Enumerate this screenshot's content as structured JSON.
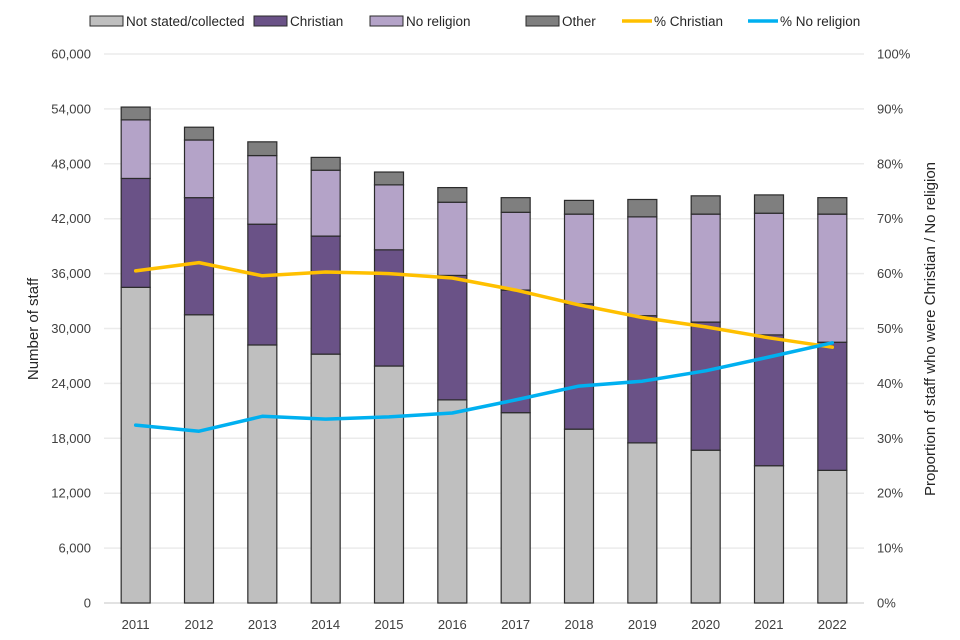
{
  "chart_data": {
    "type": "bar",
    "subtype": "stacked-bar-with-lines-dual-axis",
    "title": "",
    "categories": [
      "2011",
      "2012",
      "2013",
      "2014",
      "2015",
      "2016",
      "2017",
      "2018",
      "2019",
      "2020",
      "2021",
      "2022"
    ],
    "series": [
      {
        "name": "Not stated/collected",
        "kind": "bar",
        "axis": "left",
        "color": "#bfbfbf",
        "values": [
          34500,
          31500,
          28200,
          27200,
          25900,
          22200,
          20800,
          19000,
          17500,
          16700,
          15000,
          14500
        ]
      },
      {
        "name": "Christian",
        "kind": "bar",
        "axis": "left",
        "color": "#6a5287",
        "values": [
          11900,
          12800,
          13200,
          12900,
          12700,
          13600,
          13400,
          13700,
          13900,
          14000,
          14300,
          14000
        ]
      },
      {
        "name": "No religion",
        "kind": "bar",
        "axis": "left",
        "color": "#b4a3c8",
        "values": [
          6400,
          6300,
          7500,
          7200,
          7100,
          8000,
          8500,
          9800,
          10800,
          11800,
          13300,
          14000
        ]
      },
      {
        "name": "Other",
        "kind": "bar",
        "axis": "left",
        "color": "#7f7f7f",
        "values": [
          1400,
          1400,
          1500,
          1400,
          1400,
          1600,
          1600,
          1500,
          1900,
          2000,
          2000,
          1800
        ]
      },
      {
        "name": "% Christian",
        "kind": "line",
        "axis": "right",
        "color": "#ffc000",
        "values": [
          60.5,
          62.0,
          59.6,
          60.3,
          60.0,
          59.2,
          57.0,
          54.3,
          52.0,
          50.3,
          48.3,
          46.6
        ]
      },
      {
        "name": "% No religion",
        "kind": "line",
        "axis": "right",
        "color": "#00b0f0",
        "values": [
          32.4,
          31.3,
          34.0,
          33.5,
          33.9,
          34.6,
          37.0,
          39.5,
          40.4,
          42.3,
          44.8,
          47.4
        ]
      }
    ],
    "xlabel": "",
    "ylabel": "Number of staff",
    "y2label": "Proportion of staff who were Christian / No religion",
    "ylim": [
      0,
      60000
    ],
    "y2lim": [
      0,
      100
    ],
    "yticks": [
      "0",
      "6,000",
      "12,000",
      "18,000",
      "24,000",
      "30,000",
      "36,000",
      "42,000",
      "48,000",
      "54,000",
      "60,000"
    ],
    "y2ticks": [
      "0%",
      "10%",
      "20%",
      "30%",
      "40%",
      "50%",
      "60%",
      "70%",
      "80%",
      "90%",
      "100%"
    ],
    "grid": true,
    "legend_position": "top"
  }
}
